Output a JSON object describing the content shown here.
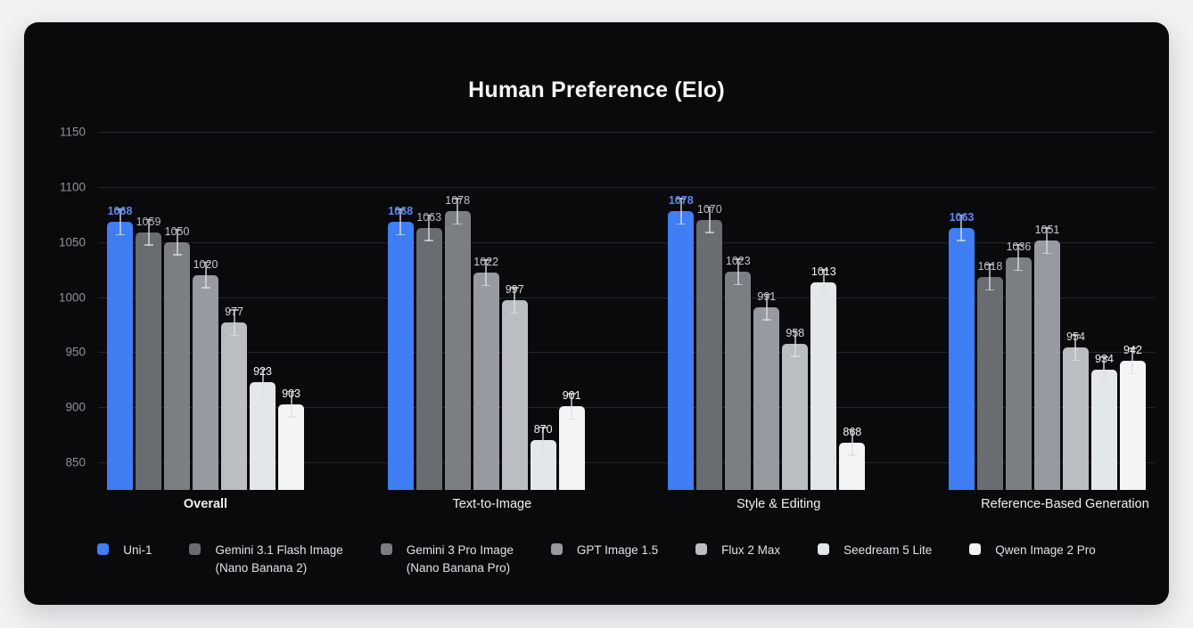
{
  "page": {
    "background_color": "#f1f1f3",
    "card_color": "#0a0a0c"
  },
  "chart_data": {
    "type": "bar",
    "title": "Human Preference (Elo)",
    "categories": [
      "Overall",
      "Text-to-Image",
      "Style & Editing",
      "Reference-Based Generation"
    ],
    "emphasized_category": "Overall",
    "series": [
      {
        "name": "Uni-1",
        "values": [
          1068,
          1068,
          1078,
          1063
        ],
        "color": "#3f7ef3",
        "label_color": "#5c8af3"
      },
      {
        "name": "Gemini 3.1 Flash Image\n(Nano Banana 2)",
        "values": [
          1059,
          1063,
          1070,
          1018
        ],
        "color": "#696d71",
        "label_color": "#b7babe"
      },
      {
        "name": "Gemini 3 Pro Image\n(Nano Banana Pro)",
        "values": [
          1050,
          1078,
          1023,
          1036
        ],
        "color": "#7b7f84",
        "label_color": "#bfc2c6"
      },
      {
        "name": "GPT Image 1.5",
        "values": [
          1020,
          1022,
          991,
          1051
        ],
        "color": "#979ba1",
        "label_color": "#c8cbcf"
      },
      {
        "name": "Flux 2 Max",
        "values": [
          977,
          997,
          958,
          954
        ],
        "color": "#babec3",
        "label_color": "#d8dadd"
      },
      {
        "name": "Seedream 5 Lite",
        "values": [
          923,
          870,
          1013,
          934
        ],
        "color": "#e4e7ea",
        "label_color": "#eef0f1"
      },
      {
        "name": "Qwen Image 2 Pro",
        "values": [
          903,
          901,
          868,
          942
        ],
        "color": "#f3f4f6",
        "label_color": "#f6f7f8"
      }
    ],
    "y_ticks": [
      850,
      900,
      950,
      1000,
      1050,
      1100,
      1150
    ],
    "ylim": [
      825,
      1150
    ],
    "error_bars": true,
    "grid": true,
    "legend_position": "bottom"
  }
}
